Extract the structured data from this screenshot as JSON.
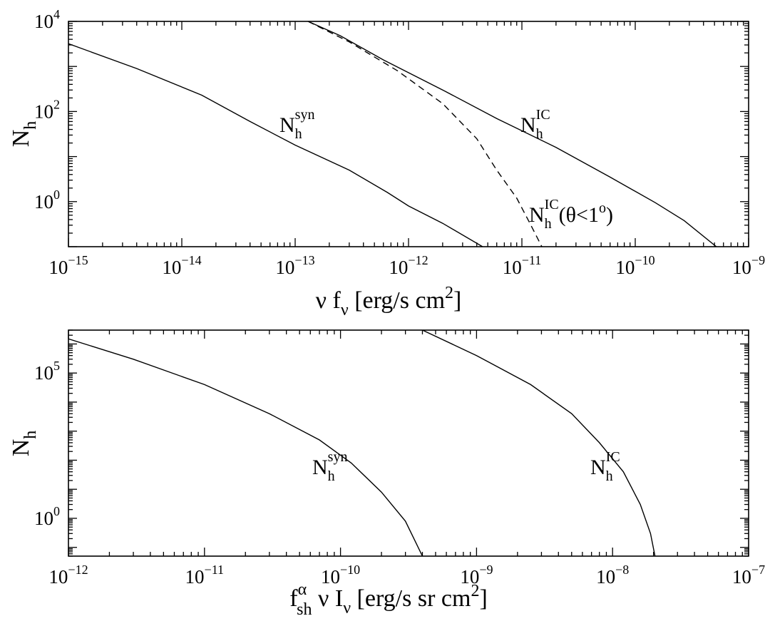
{
  "chart_data": [
    {
      "type": "line",
      "xscale": "log",
      "yscale": "log",
      "xlim": [
        1e-15,
        1e-09
      ],
      "ylim": [
        0.1,
        10000
      ],
      "grid": false,
      "x_ticks": [
        {
          "base": "10",
          "exp": "−15"
        },
        {
          "base": "10",
          "exp": "−14"
        },
        {
          "base": "10",
          "exp": "−13"
        },
        {
          "base": "10",
          "exp": "−12"
        },
        {
          "base": "10",
          "exp": "−11"
        },
        {
          "base": "10",
          "exp": "−10"
        },
        {
          "base": "10",
          "exp": "−9"
        }
      ],
      "y_ticks": [
        {
          "base": "10",
          "exp": "0"
        },
        {
          "base": "10",
          "exp": "2"
        },
        {
          "base": "10",
          "exp": "4"
        }
      ],
      "xlabel": {
        "pre": "ν f",
        "sub": "ν",
        "mid": " [erg/s cm",
        "sup": "2",
        "post": "]"
      },
      "ylabel": {
        "main": "N",
        "sub": "h"
      },
      "series": [
        {
          "name": "N_h^syn",
          "style": "solid",
          "label": {
            "main": "N",
            "sub": "h",
            "sup": "syn",
            "post": ""
          },
          "points": [
            [
              1e-15,
              3200
            ],
            [
              4e-15,
              900
            ],
            [
              1.5e-14,
              230
            ],
            [
              4e-14,
              60
            ],
            [
              1e-13,
              18
            ],
            [
              3e-13,
              5
            ],
            [
              6.5e-13,
              1.6
            ],
            [
              1e-12,
              0.8
            ],
            [
              2e-12,
              0.33
            ],
            [
              4.5e-12,
              0.1
            ]
          ]
        },
        {
          "name": "N_h^IC",
          "style": "solid",
          "label": {
            "main": "N",
            "sub": "h",
            "sup": "IC",
            "post": ""
          },
          "points": [
            [
              1.3e-13,
              10000
            ],
            [
              2.5e-13,
              4800
            ],
            [
              6e-13,
              1400
            ],
            [
              2e-12,
              300
            ],
            [
              6e-12,
              70
            ],
            [
              2e-11,
              16
            ],
            [
              6e-11,
              3.5
            ],
            [
              1.5e-10,
              0.95
            ],
            [
              2.7e-10,
              0.38
            ],
            [
              5.2e-10,
              0.1
            ]
          ]
        },
        {
          "name": "N_h^IC(θ<1°)",
          "style": "dashed",
          "label": {
            "main": "N",
            "sub": "h",
            "sup": "IC",
            "post": "(θ<1",
            "post_sup": "o",
            "post_end": ")"
          },
          "points": [
            [
              1.3e-13,
              10000
            ],
            [
              3e-13,
              3500
            ],
            [
              8e-13,
              800
            ],
            [
              2e-12,
              150
            ],
            [
              4e-12,
              25
            ],
            [
              6e-12,
              5
            ],
            [
              9e-12,
              1.2
            ],
            [
              1.2e-11,
              0.3
            ],
            [
              1.5e-11,
              0.1
            ]
          ]
        }
      ]
    },
    {
      "type": "line",
      "xscale": "log",
      "yscale": "log",
      "xlim": [
        1e-12,
        1e-07
      ],
      "ylim": [
        0.05,
        3000000
      ],
      "grid": false,
      "x_ticks": [
        {
          "base": "10",
          "exp": "−12"
        },
        {
          "base": "10",
          "exp": "−11"
        },
        {
          "base": "10",
          "exp": "−10"
        },
        {
          "base": "10",
          "exp": "−9"
        },
        {
          "base": "10",
          "exp": "−8"
        },
        {
          "base": "10",
          "exp": "−7"
        }
      ],
      "y_ticks": [
        {
          "base": "10",
          "exp": "0"
        },
        {
          "base": "10",
          "exp": "5"
        }
      ],
      "xlabel": {
        "pre": "f",
        "pre_sup": "α",
        "pre_sub": "sh",
        "mid": " ν I",
        "mid_sub": "ν",
        "post": " [erg/s sr cm",
        "sup": "2",
        "end": "]"
      },
      "ylabel": {
        "main": "N",
        "sub": "h"
      },
      "series": [
        {
          "name": "N_h^syn",
          "style": "solid",
          "label": {
            "main": "N",
            "sub": "h",
            "sup": "syn",
            "post": ""
          },
          "points": [
            [
              1e-12,
              1500000
            ],
            [
              3e-12,
              300000
            ],
            [
              1e-11,
              40000
            ],
            [
              3e-11,
              4000
            ],
            [
              7e-11,
              500
            ],
            [
              1.2e-10,
              80
            ],
            [
              2e-10,
              8
            ],
            [
              3e-10,
              0.8
            ],
            [
              4e-10,
              0.05
            ]
          ]
        },
        {
          "name": "N_h^IC",
          "style": "solid",
          "label": {
            "main": "N",
            "sub": "h",
            "sup": "IC",
            "post": ""
          },
          "points": [
            [
              4e-10,
              3000000
            ],
            [
              1e-09,
              400000
            ],
            [
              2.5e-09,
              40000
            ],
            [
              5e-09,
              4000
            ],
            [
              8e-09,
              400
            ],
            [
              1.2e-08,
              40
            ],
            [
              1.6e-08,
              3
            ],
            [
              1.9e-08,
              0.3
            ],
            [
              2.05e-08,
              0.05
            ]
          ]
        }
      ]
    }
  ]
}
